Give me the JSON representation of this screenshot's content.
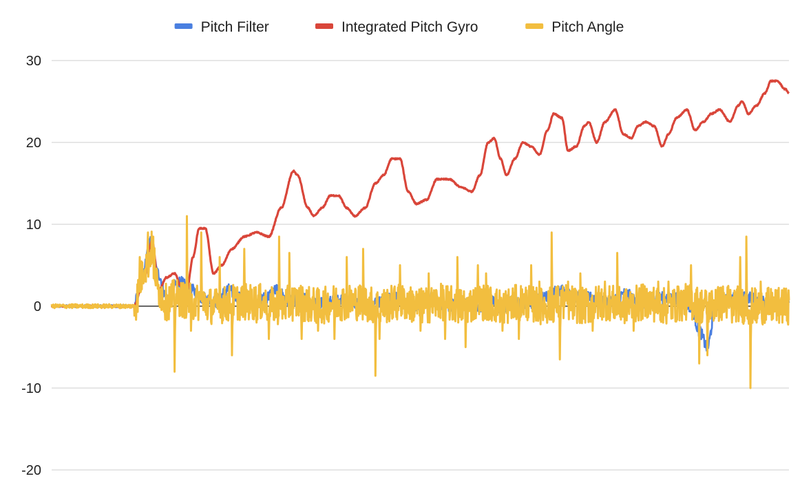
{
  "chart_data": {
    "type": "line",
    "title": "",
    "xlabel": "",
    "ylabel": "",
    "ylim": [
      -20,
      30
    ],
    "yticks": [
      30,
      20,
      10,
      0,
      -10,
      -20
    ],
    "ytick_labels": [
      "30",
      "20",
      "10",
      "0",
      "-10",
      "-20"
    ],
    "grid": true,
    "legend_position": "top",
    "x_count": 1800,
    "series": [
      {
        "name": "Pitch Filter",
        "color": "#4a7fe0",
        "anchors": [
          [
            0,
            0
          ],
          [
            200,
            0
          ],
          [
            220,
            3
          ],
          [
            240,
            8
          ],
          [
            260,
            4
          ],
          [
            280,
            1
          ],
          [
            310,
            3
          ],
          [
            340,
            2
          ],
          [
            370,
            1
          ],
          [
            400,
            0.5
          ],
          [
            430,
            2
          ],
          [
            460,
            1
          ],
          [
            490,
            0.5
          ],
          [
            520,
            1
          ],
          [
            550,
            2
          ],
          [
            580,
            0.5
          ],
          [
            610,
            1
          ],
          [
            640,
            0.3
          ],
          [
            680,
            0.5
          ],
          [
            720,
            1
          ],
          [
            760,
            0
          ],
          [
            800,
            0.5
          ],
          [
            840,
            1
          ],
          [
            880,
            0
          ],
          [
            920,
            1
          ],
          [
            960,
            0
          ],
          [
            1000,
            0.5
          ],
          [
            1040,
            0
          ],
          [
            1080,
            0.5
          ],
          [
            1100,
            -1
          ],
          [
            1120,
            0.5
          ],
          [
            1160,
            0.3
          ],
          [
            1200,
            1
          ],
          [
            1240,
            2
          ],
          [
            1280,
            1
          ],
          [
            1320,
            1
          ],
          [
            1360,
            0.5
          ],
          [
            1400,
            1.5
          ],
          [
            1440,
            0
          ],
          [
            1480,
            1
          ],
          [
            1520,
            1
          ],
          [
            1560,
            0
          ],
          [
            1580,
            -3
          ],
          [
            1600,
            -5
          ],
          [
            1620,
            0
          ],
          [
            1660,
            1
          ],
          [
            1700,
            1
          ],
          [
            1740,
            0.5
          ],
          [
            1780,
            0
          ],
          [
            1800,
            0
          ]
        ]
      },
      {
        "name": "Integrated Pitch Gyro",
        "color": "#d9463a",
        "anchors": [
          [
            0,
            0
          ],
          [
            200,
            0
          ],
          [
            225,
            3
          ],
          [
            245,
            8
          ],
          [
            262,
            2
          ],
          [
            280,
            3.5
          ],
          [
            300,
            4
          ],
          [
            315,
            2.5
          ],
          [
            330,
            2
          ],
          [
            345,
            6
          ],
          [
            360,
            9.5
          ],
          [
            375,
            9.5
          ],
          [
            395,
            4
          ],
          [
            415,
            5
          ],
          [
            440,
            7
          ],
          [
            470,
            8.5
          ],
          [
            500,
            9
          ],
          [
            530,
            8.5
          ],
          [
            560,
            12
          ],
          [
            590,
            16.5
          ],
          [
            600,
            16
          ],
          [
            625,
            12
          ],
          [
            640,
            11
          ],
          [
            660,
            12
          ],
          [
            680,
            13.5
          ],
          [
            700,
            13.5
          ],
          [
            720,
            12
          ],
          [
            740,
            11
          ],
          [
            765,
            12
          ],
          [
            790,
            15
          ],
          [
            810,
            16
          ],
          [
            830,
            18
          ],
          [
            850,
            18
          ],
          [
            870,
            14
          ],
          [
            890,
            12.5
          ],
          [
            915,
            13
          ],
          [
            940,
            15.5
          ],
          [
            970,
            15.5
          ],
          [
            1000,
            14.5
          ],
          [
            1025,
            14
          ],
          [
            1045,
            16
          ],
          [
            1065,
            20
          ],
          [
            1080,
            20.5
          ],
          [
            1095,
            18
          ],
          [
            1110,
            16
          ],
          [
            1130,
            18
          ],
          [
            1150,
            20
          ],
          [
            1170,
            19.5
          ],
          [
            1190,
            18.5
          ],
          [
            1210,
            21.5
          ],
          [
            1225,
            23.5
          ],
          [
            1245,
            23
          ],
          [
            1260,
            19
          ],
          [
            1280,
            19.5
          ],
          [
            1300,
            22
          ],
          [
            1310,
            22.5
          ],
          [
            1330,
            20
          ],
          [
            1350,
            22.5
          ],
          [
            1375,
            24
          ],
          [
            1395,
            21
          ],
          [
            1415,
            20.5
          ],
          [
            1430,
            22
          ],
          [
            1450,
            22.5
          ],
          [
            1470,
            22
          ],
          [
            1490,
            19.5
          ],
          [
            1505,
            21
          ],
          [
            1525,
            23
          ],
          [
            1550,
            24
          ],
          [
            1570,
            21.5
          ],
          [
            1590,
            22.5
          ],
          [
            1610,
            23.5
          ],
          [
            1630,
            24
          ],
          [
            1655,
            22.5
          ],
          [
            1675,
            24.5
          ],
          [
            1685,
            25
          ],
          [
            1700,
            23.5
          ],
          [
            1720,
            24.5
          ],
          [
            1740,
            26
          ],
          [
            1755,
            27.5
          ],
          [
            1770,
            27.5
          ],
          [
            1790,
            26.5
          ],
          [
            1800,
            26
          ]
        ]
      },
      {
        "name": "Pitch Angle",
        "color": "#f2be3f",
        "anchors": [
          [
            0,
            0
          ],
          [
            200,
            0
          ],
          [
            230,
            5
          ],
          [
            245,
            7
          ],
          [
            260,
            2
          ],
          [
            280,
            0.5
          ],
          [
            300,
            1
          ],
          [
            350,
            0.5
          ],
          [
            400,
            0
          ],
          [
            450,
            0.5
          ],
          [
            500,
            0.5
          ],
          [
            550,
            0
          ],
          [
            600,
            0.5
          ],
          [
            650,
            0
          ],
          [
            700,
            0.5
          ],
          [
            750,
            0.5
          ],
          [
            800,
            0
          ],
          [
            850,
            0.5
          ],
          [
            900,
            0
          ],
          [
            950,
            0.5
          ],
          [
            1000,
            0
          ],
          [
            1050,
            0.5
          ],
          [
            1100,
            0
          ],
          [
            1150,
            0.5
          ],
          [
            1200,
            0
          ],
          [
            1250,
            0.5
          ],
          [
            1300,
            0
          ],
          [
            1350,
            0.5
          ],
          [
            1400,
            0
          ],
          [
            1450,
            0.5
          ],
          [
            1500,
            0
          ],
          [
            1550,
            0.5
          ],
          [
            1600,
            0
          ],
          [
            1650,
            0.5
          ],
          [
            1700,
            0
          ],
          [
            1750,
            0
          ],
          [
            1800,
            0
          ]
        ],
        "spikes": [
          [
            215,
            6
          ],
          [
            235,
            9
          ],
          [
            248,
            8.5
          ],
          [
            300,
            -8
          ],
          [
            330,
            11
          ],
          [
            340,
            -3
          ],
          [
            365,
            9
          ],
          [
            410,
            6
          ],
          [
            440,
            -6
          ],
          [
            470,
            7
          ],
          [
            500,
            -2
          ],
          [
            530,
            -4
          ],
          [
            555,
            8.5
          ],
          [
            580,
            6.5
          ],
          [
            610,
            -4
          ],
          [
            650,
            -3
          ],
          [
            690,
            -4
          ],
          [
            720,
            6
          ],
          [
            760,
            7
          ],
          [
            790,
            -8.5
          ],
          [
            800,
            -4
          ],
          [
            850,
            5
          ],
          [
            900,
            -3
          ],
          [
            920,
            4
          ],
          [
            960,
            -4
          ],
          [
            990,
            6
          ],
          [
            1010,
            -5
          ],
          [
            1040,
            5
          ],
          [
            1060,
            4
          ],
          [
            1100,
            -3
          ],
          [
            1140,
            -4
          ],
          [
            1170,
            5
          ],
          [
            1190,
            3
          ],
          [
            1220,
            9
          ],
          [
            1240,
            -6.5
          ],
          [
            1260,
            3
          ],
          [
            1290,
            4
          ],
          [
            1320,
            -3
          ],
          [
            1350,
            3
          ],
          [
            1380,
            6.5
          ],
          [
            1420,
            -3
          ],
          [
            1450,
            2
          ],
          [
            1480,
            3
          ],
          [
            1505,
            3
          ],
          [
            1530,
            2
          ],
          [
            1560,
            5
          ],
          [
            1580,
            -7
          ],
          [
            1600,
            -6
          ],
          [
            1620,
            2
          ],
          [
            1660,
            -2
          ],
          [
            1680,
            6
          ],
          [
            1695,
            8.5
          ],
          [
            1705,
            -10
          ],
          [
            1720,
            -2
          ],
          [
            1730,
            3
          ],
          [
            1750,
            -1
          ],
          [
            1780,
            1
          ]
        ]
      }
    ]
  }
}
